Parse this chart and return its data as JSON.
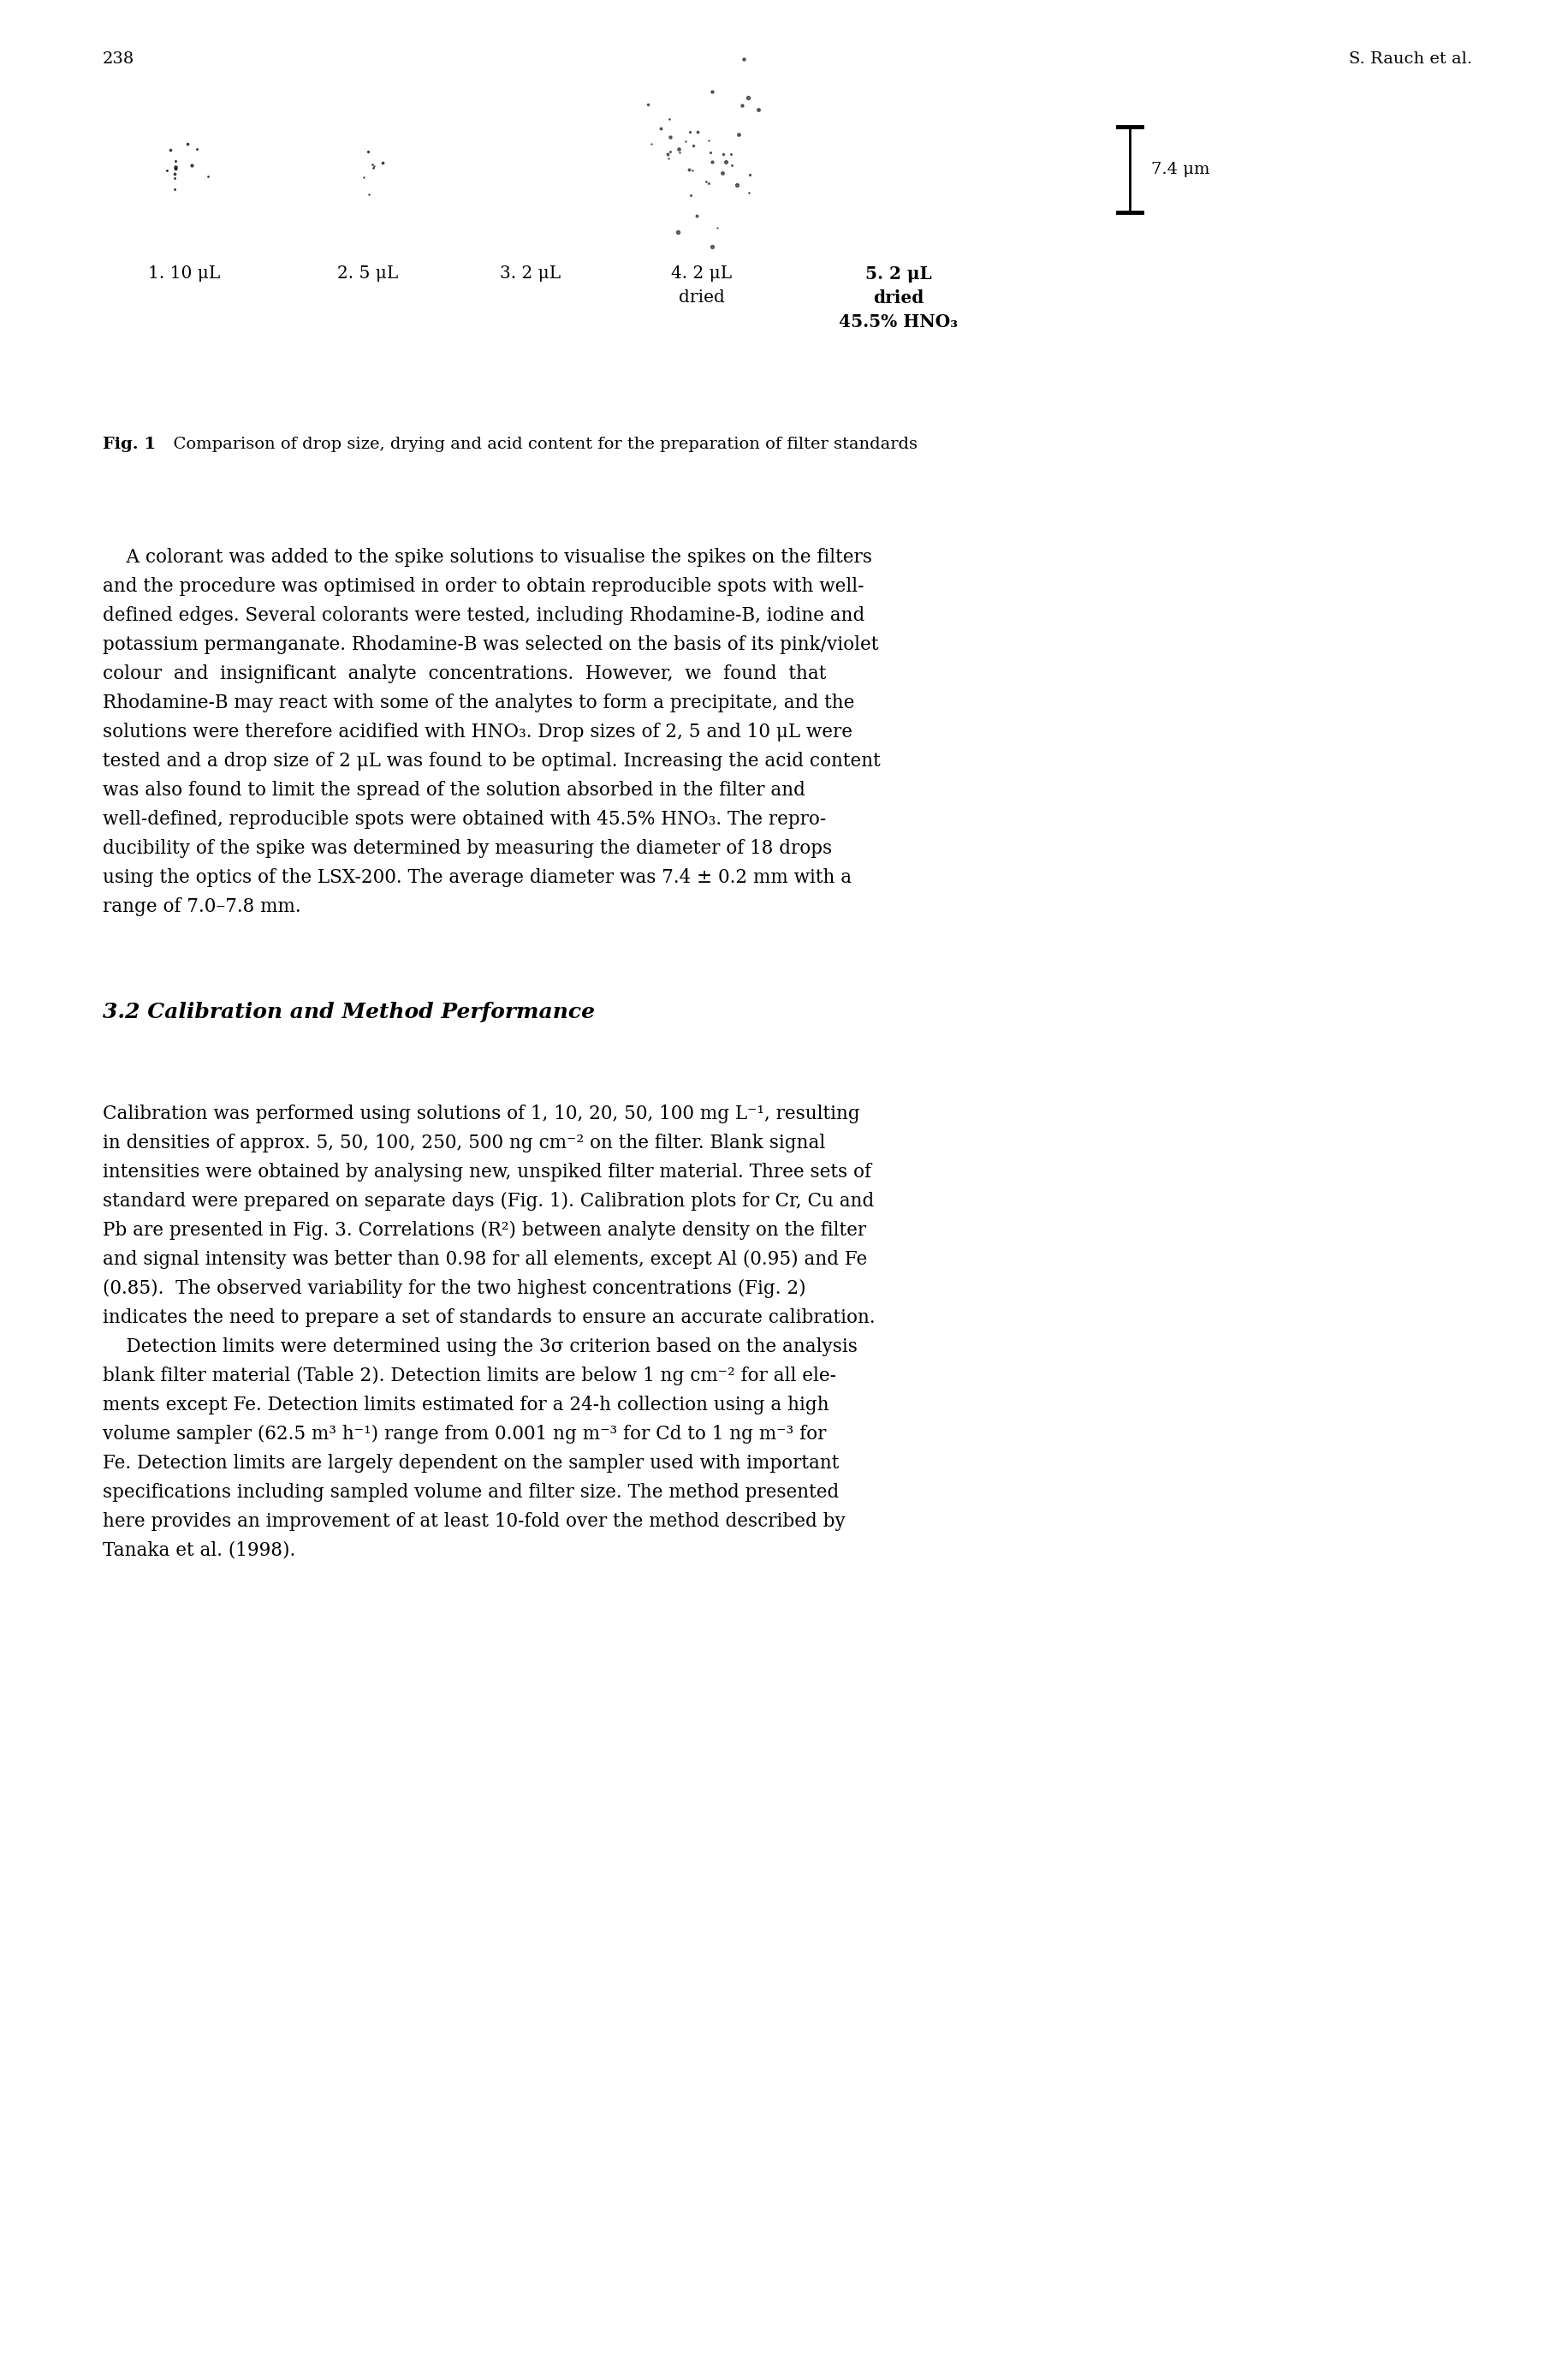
{
  "page_number": "238",
  "author": "S. Rauch et al.",
  "fig_caption_bold": "Fig. 1",
  "fig_caption_normal": "  Comparison of drop size, drying and acid content for the preparation of filter standards",
  "scalebar_text": "7.4 μm",
  "section_heading": "3.2 Calibration and Method Performance",
  "para1_lines": [
    "    A colorant was added to the spike solutions to visualise the spikes on the filters",
    "and the procedure was optimised in order to obtain reproducible spots with well-",
    "defined edges. Several colorants were tested, including Rhodamine-B, iodine and",
    "potassium permanganate. Rhodamine-B was selected on the basis of its pink/violet",
    "colour  and  insignificant  analyte  concentrations.  However,  we  found  that",
    "Rhodamine-B may react with some of the analytes to form a precipitate, and the",
    "solutions were therefore acidified with HNO₃. Drop sizes of 2, 5 and 10 μL were",
    "tested and a drop size of 2 μL was found to be optimal. Increasing the acid content",
    "was also found to limit the spread of the solution absorbed in the filter and",
    "well-defined, reproducible spots were obtained with 45.5% HNO₃. The repro-",
    "ducibility of the spike was determined by measuring the diameter of 18 drops",
    "using the optics of the LSX-200. The average diameter was 7.4 ± 0.2 mm with a",
    "range of 7.0–7.8 mm."
  ],
  "para2_lines": [
    "Calibration was performed using solutions of 1, 10, 20, 50, 100 mg L⁻¹, resulting",
    "in densities of approx. 5, 50, 100, 250, 500 ng cm⁻² on the filter. Blank signal",
    "intensities were obtained by analysing new, unspiked filter material. Three sets of",
    "standard were prepared on separate days (Fig. 1). Calibration plots for Cr, Cu and",
    "Pb are presented in Fig. 3. Correlations (R²) between analyte density on the filter",
    "and signal intensity was better than 0.98 for all elements, except Al (0.95) and Fe",
    "(0.85).  The observed variability for the two highest concentrations (Fig. 2)",
    "indicates the need to prepare a set of standards to ensure an accurate calibration."
  ],
  "para3_lines": [
    "    Detection limits were determined using the 3σ criterion based on the analysis",
    "blank filter material (Table 2). Detection limits are below 1 ng cm⁻² for all ele-",
    "ments except Fe. Detection limits estimated for a 24-h collection using a high",
    "volume sampler (62.5 m³ h⁻¹) range from 0.001 ng m⁻³ for Cd to 1 ng m⁻³ for",
    "Fe. Detection limits are largely dependent on the sampler used with important",
    "specifications including sampled volume and filter size. The method presented",
    "here provides an improvement of at least 10-fold over the method described by",
    "Tanaka et al. (1998)."
  ],
  "background_color": "#ffffff",
  "text_color": "#000000"
}
